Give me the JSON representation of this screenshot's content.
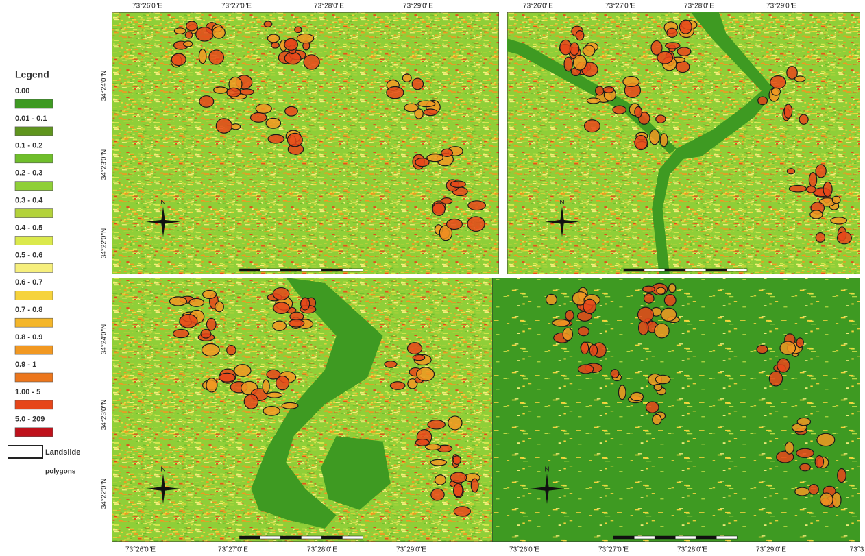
{
  "legend": {
    "title": "Legend",
    "items": [
      {
        "label": "0.00",
        "color": "#3e9a22"
      },
      {
        "label": "0.01 - 0.1",
        "color": "#5f951e"
      },
      {
        "label": "0.1 - 0.2",
        "color": "#6fbe2b"
      },
      {
        "label": "0.2 - 0.3",
        "color": "#8fcf38"
      },
      {
        "label": "0.3 - 0.4",
        "color": "#b3d23a"
      },
      {
        "label": "0.4 - 0.5",
        "color": "#dbe94c"
      },
      {
        "label": "0.5 - 0.6",
        "color": "#f6ef7c"
      },
      {
        "label": "0.6 - 0.7",
        "color": "#f6d33c"
      },
      {
        "label": "0.7 - 0.8",
        "color": "#f4b62a"
      },
      {
        "label": "0.8 - 0.9",
        "color": "#f19822"
      },
      {
        "label": "0.9 - 1",
        "color": "#ec761c"
      },
      {
        "label": "1.00 - 5",
        "color": "#e6461a"
      },
      {
        "label": "5.0 - 209",
        "color": "#bf111b"
      }
    ],
    "polygon_label": "Landslide",
    "polygon_label_2": "polygons"
  },
  "north": "N",
  "panels": [
    {
      "top_labels": [
        "73°26'0\"E",
        "73°27'0\"E",
        "73°28'0\"E",
        "73°29'0\"E"
      ],
      "left_labels": [
        "34°24'0\"N",
        "34°23'0\"N",
        "34°22'0\"N"
      ]
    },
    {
      "top_labels": [
        "73°26'0\"E",
        "73°27'0\"E",
        "73°28'0\"E",
        "73°29'0\"E"
      ]
    },
    {
      "bottom_labels": [
        "73°26'0\"E",
        "73°27'0\"E",
        "73°28'0\"E",
        "73°29'0\"E"
      ],
      "left_labels": [
        "34°24'0\"N",
        "34°23'0\"N",
        "34°22'0\"N"
      ]
    },
    {
      "bottom_labels": [
        "73°26'0\"E",
        "73°27'0\"E",
        "73°28'0\"E",
        "73°29'0\"E",
        "73°3"
      ]
    }
  ]
}
